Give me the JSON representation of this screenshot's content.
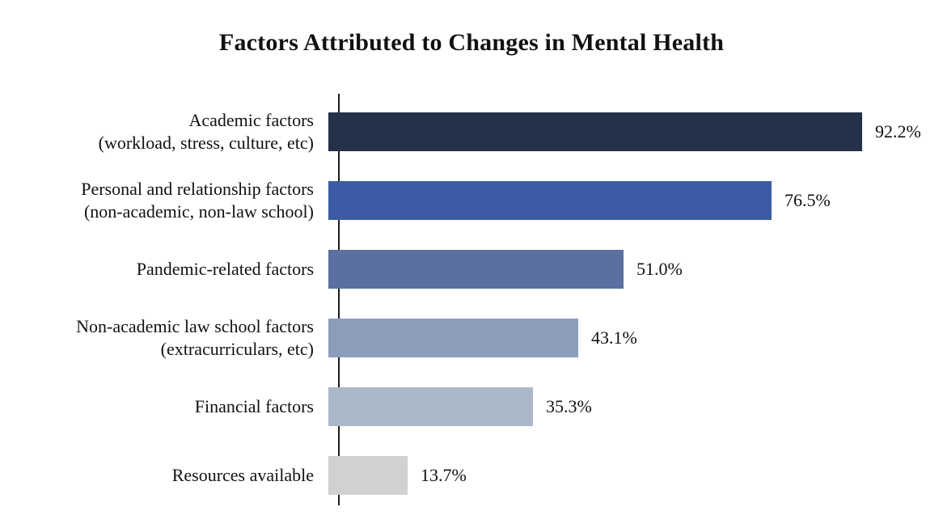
{
  "title": "Factors Attributed to Changes in Mental Health",
  "chart_data": {
    "type": "bar",
    "orientation": "horizontal",
    "title": "Factors Attributed to Changes in Mental Health",
    "categories": [
      [
        "Academic factors",
        "(workload, stress, culture, etc)"
      ],
      [
        "Personal and relationship factors",
        "(non-academic, non-law school)"
      ],
      [
        "Pandemic-related factors"
      ],
      [
        "Non-academic law school factors",
        "(extracurriculars, etc)"
      ],
      [
        "Financial factors"
      ],
      [
        "Resources available"
      ]
    ],
    "values": [
      92.2,
      76.5,
      51.0,
      43.1,
      35.3,
      13.7
    ],
    "value_labels": [
      "92.2%",
      "76.5%",
      "51.0%",
      "43.1%",
      "35.3%",
      "13.7%"
    ],
    "bar_colors": [
      "#253149",
      "#3b5ca4",
      "#5b70a0",
      "#8c9dbc",
      "#aab7c9",
      "#d0d1d3"
    ],
    "xlabel": "",
    "ylabel": "",
    "xlim": [
      0,
      100
    ],
    "grid": false,
    "legend": false,
    "axis_color": "#1a1a1a",
    "background_color": "#ffffff"
  }
}
